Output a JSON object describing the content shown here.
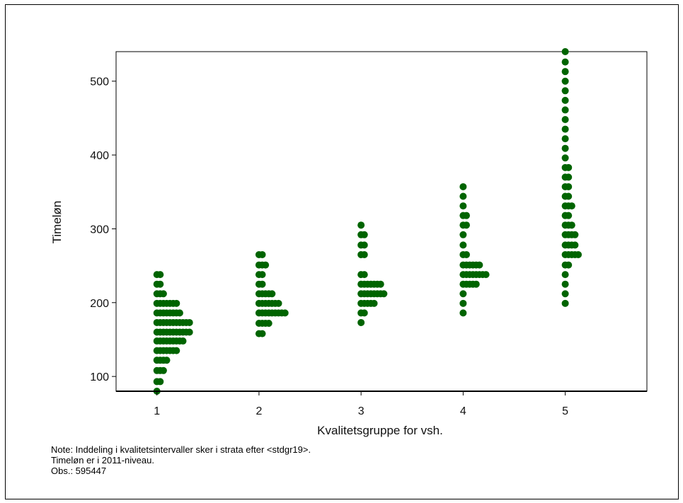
{
  "chart_data": {
    "type": "scatter",
    "subtype": "dot histogram (stacked markers per stratum)",
    "title": "",
    "xlabel": "Kvalitetsgruppe for vsh.",
    "ylabel": "Timeløn",
    "x_ticks": [
      "1",
      "2",
      "3",
      "4",
      "5"
    ],
    "y_ticks": [
      100,
      200,
      300,
      400,
      500
    ],
    "xlim": [
      0.6,
      5.8
    ],
    "ylim": [
      80,
      540
    ],
    "marker_color": "#006400",
    "grid": false,
    "legend": "none",
    "series": [
      {
        "group": 1,
        "bins": [
          {
            "y": 80,
            "n": 1
          },
          {
            "y": 93,
            "n": 2
          },
          {
            "y": 108,
            "n": 3
          },
          {
            "y": 122,
            "n": 4
          },
          {
            "y": 135,
            "n": 7
          },
          {
            "y": 148,
            "n": 9
          },
          {
            "y": 160,
            "n": 11
          },
          {
            "y": 173,
            "n": 11
          },
          {
            "y": 186,
            "n": 8
          },
          {
            "y": 199,
            "n": 7
          },
          {
            "y": 212,
            "n": 3
          },
          {
            "y": 225,
            "n": 2
          },
          {
            "y": 238,
            "n": 2
          }
        ]
      },
      {
        "group": 2,
        "bins": [
          {
            "y": 158,
            "n": 2
          },
          {
            "y": 172,
            "n": 4
          },
          {
            "y": 186,
            "n": 9
          },
          {
            "y": 199,
            "n": 7
          },
          {
            "y": 212,
            "n": 5
          },
          {
            "y": 225,
            "n": 2
          },
          {
            "y": 238,
            "n": 2
          },
          {
            "y": 251,
            "n": 3
          },
          {
            "y": 265,
            "n": 2
          }
        ]
      },
      {
        "group": 3,
        "bins": [
          {
            "y": 173,
            "n": 1
          },
          {
            "y": 186,
            "n": 2
          },
          {
            "y": 199,
            "n": 5
          },
          {
            "y": 212,
            "n": 8
          },
          {
            "y": 225,
            "n": 7
          },
          {
            "y": 238,
            "n": 2
          },
          {
            "y": 265,
            "n": 2
          },
          {
            "y": 278,
            "n": 2
          },
          {
            "y": 292,
            "n": 2
          },
          {
            "y": 305,
            "n": 1
          }
        ]
      },
      {
        "group": 4,
        "bins": [
          {
            "y": 186,
            "n": 1
          },
          {
            "y": 199,
            "n": 1
          },
          {
            "y": 212,
            "n": 1
          },
          {
            "y": 225,
            "n": 5
          },
          {
            "y": 238,
            "n": 8
          },
          {
            "y": 251,
            "n": 6
          },
          {
            "y": 265,
            "n": 2
          },
          {
            "y": 278,
            "n": 1
          },
          {
            "y": 292,
            "n": 1
          },
          {
            "y": 305,
            "n": 2
          },
          {
            "y": 318,
            "n": 2
          },
          {
            "y": 331,
            "n": 1
          },
          {
            "y": 344,
            "n": 1
          },
          {
            "y": 357,
            "n": 1
          }
        ]
      },
      {
        "group": 5,
        "bins": [
          {
            "y": 199,
            "n": 1
          },
          {
            "y": 212,
            "n": 1
          },
          {
            "y": 225,
            "n": 1
          },
          {
            "y": 238,
            "n": 1
          },
          {
            "y": 251,
            "n": 2
          },
          {
            "y": 265,
            "n": 5
          },
          {
            "y": 278,
            "n": 4
          },
          {
            "y": 292,
            "n": 4
          },
          {
            "y": 305,
            "n": 3
          },
          {
            "y": 318,
            "n": 2
          },
          {
            "y": 331,
            "n": 3
          },
          {
            "y": 344,
            "n": 2
          },
          {
            "y": 357,
            "n": 2
          },
          {
            "y": 370,
            "n": 2
          },
          {
            "y": 383,
            "n": 2
          },
          {
            "y": 396,
            "n": 1
          },
          {
            "y": 409,
            "n": 1
          },
          {
            "y": 422,
            "n": 1
          },
          {
            "y": 435,
            "n": 1
          },
          {
            "y": 448,
            "n": 1
          },
          {
            "y": 461,
            "n": 1
          },
          {
            "y": 474,
            "n": 1
          },
          {
            "y": 487,
            "n": 1
          },
          {
            "y": 500,
            "n": 1
          },
          {
            "y": 513,
            "n": 1
          },
          {
            "y": 526,
            "n": 1
          },
          {
            "y": 540,
            "n": 1
          }
        ]
      }
    ],
    "notes": [
      "Note: Inddeling i kvalitetsintervaller sker i strata efter <stdgr19>.",
      "Timeløn er i 2011-niveau.",
      "Obs.: 595447"
    ]
  }
}
